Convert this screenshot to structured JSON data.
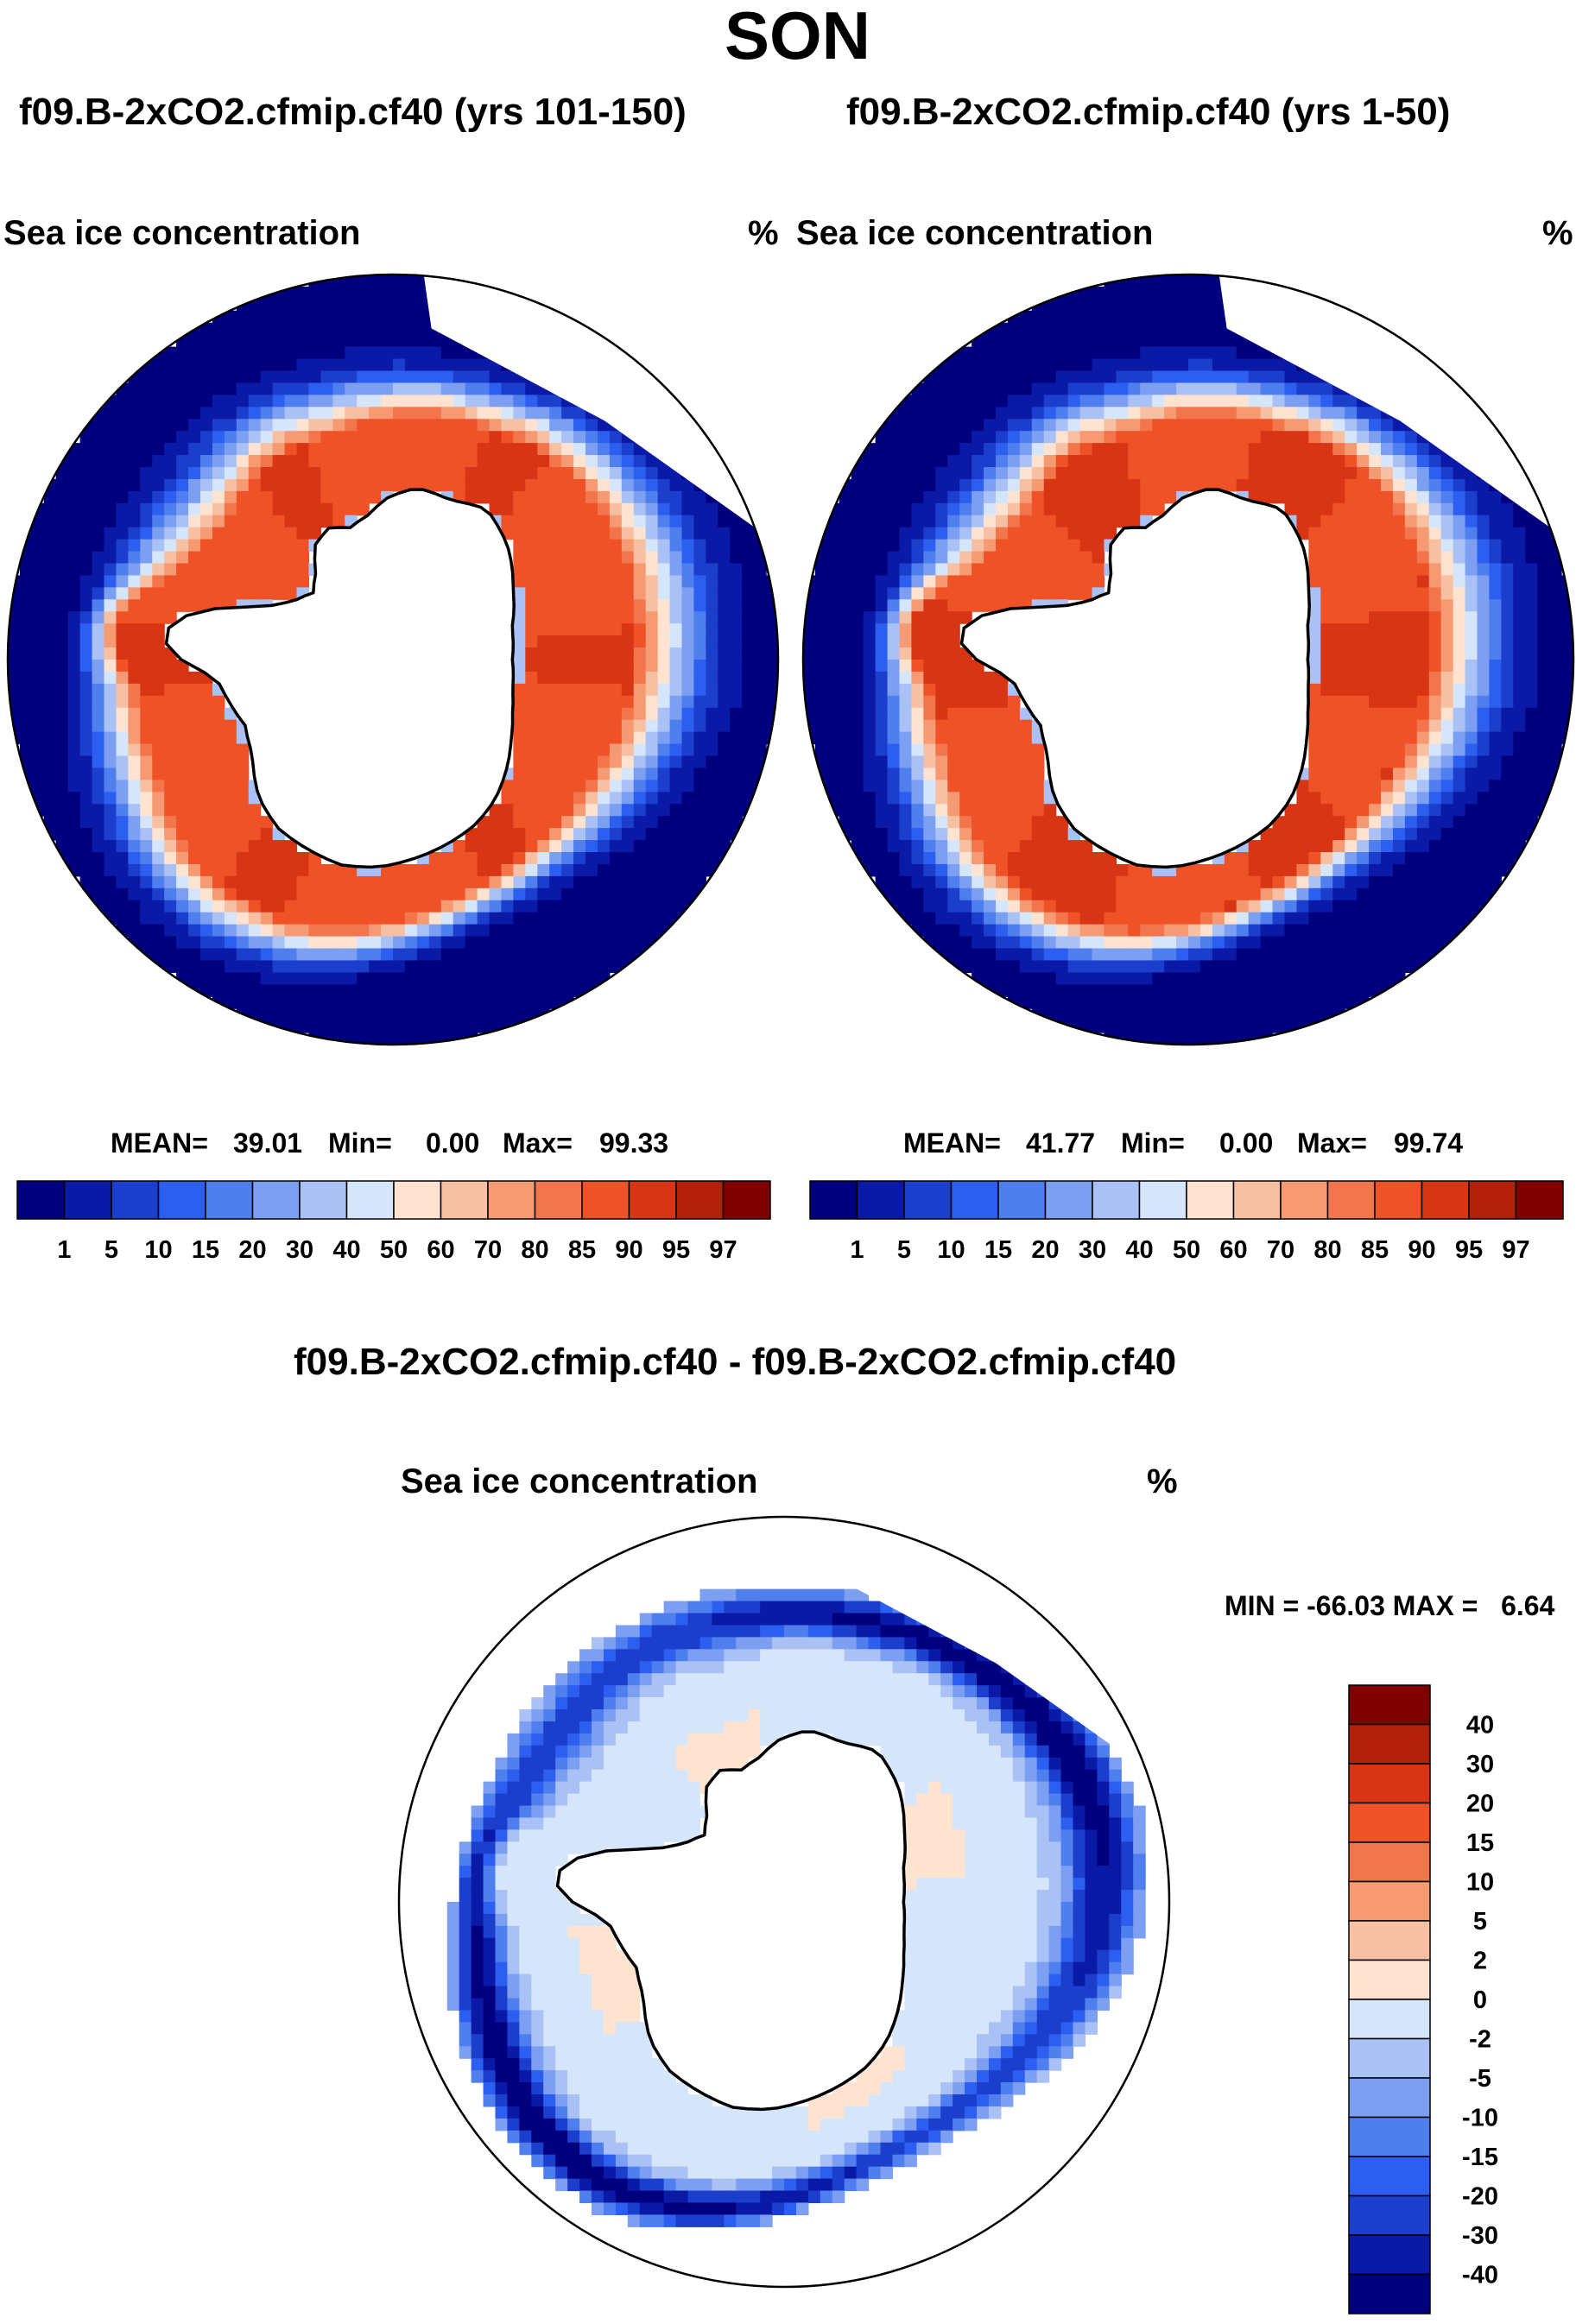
{
  "title": "SON",
  "panels": [
    {
      "name": "left",
      "case_title": "f09.B-2xCO2.cfmip.cf40 (yrs 101-150)",
      "variable": "Sea ice concentration",
      "units": "%",
      "stats": {
        "mean_label": "MEAN=",
        "mean": "39.01",
        "min_label": "Min=",
        "min": "0.00",
        "max_label": "Max=",
        "max": "99.33"
      }
    },
    {
      "name": "right",
      "case_title": "f09.B-2xCO2.cfmip.cf40 (yrs 1-50)",
      "variable": "Sea ice concentration",
      "units": "%",
      "stats": {
        "mean_label": "MEAN=",
        "mean": "41.77",
        "min_label": "Min=",
        "min": "0.00",
        "max_label": "Max=",
        "max": "99.74"
      }
    }
  ],
  "diff_panel": {
    "case_title": "f09.B-2xCO2.cfmip.cf40 - f09.B-2xCO2.cfmip.cf40",
    "variable": "Sea ice concentration",
    "units": "%",
    "minmax_text": "MIN = -66.03 MAX =   6.64"
  },
  "chart_data": [
    {
      "type": "heatmap",
      "title": "f09.B-2xCO2.cfmip.cf40 (yrs 101-150)",
      "variable": "Sea ice concentration",
      "units": "%",
      "projection": "south-polar-stereographic",
      "mean": 39.01,
      "min": 0.0,
      "max": 99.33,
      "levels": [
        1,
        5,
        10,
        15,
        20,
        30,
        40,
        50,
        60,
        70,
        80,
        85,
        90,
        95,
        97
      ],
      "colors": [
        "#00007f",
        "#0a1aa6",
        "#1b3fcc",
        "#2c5ff0",
        "#4f7fee",
        "#7d9ff2",
        "#a9c1f5",
        "#d6e6fa",
        "#fde3d0",
        "#f8c0a2",
        "#f59a73",
        "#f2754c",
        "#ef5227",
        "#d83514",
        "#b3200a",
        "#7f0000"
      ],
      "field": "ring-peaked",
      "field_params": {
        "peak": 93
      }
    },
    {
      "type": "heatmap",
      "title": "f09.B-2xCO2.cfmip.cf40 (yrs 1-50)",
      "variable": "Sea ice concentration",
      "units": "%",
      "projection": "south-polar-stereographic",
      "mean": 41.77,
      "min": 0.0,
      "max": 99.74,
      "levels": [
        1,
        5,
        10,
        15,
        20,
        30,
        40,
        50,
        60,
        70,
        80,
        85,
        90,
        95,
        97
      ],
      "colors": [
        "#00007f",
        "#0a1aa6",
        "#1b3fcc",
        "#2c5ff0",
        "#4f7fee",
        "#7d9ff2",
        "#a9c1f5",
        "#d6e6fa",
        "#fde3d0",
        "#f8c0a2",
        "#f59a73",
        "#f2754c",
        "#ef5227",
        "#d83514",
        "#b3200a",
        "#7f0000"
      ],
      "field": "ring-peaked",
      "field_params": {
        "peak": 95
      }
    },
    {
      "type": "heatmap",
      "title": "f09.B-2xCO2.cfmip.cf40 - f09.B-2xCO2.cfmip.cf40",
      "variable": "Sea ice concentration",
      "units": "%",
      "projection": "south-polar-stereographic",
      "min": -66.03,
      "max": 6.64,
      "levels": [
        40,
        30,
        20,
        15,
        10,
        5,
        2,
        0,
        -2,
        -5,
        -10,
        -15,
        -20,
        -30,
        -40
      ],
      "colors": [
        "#7f0000",
        "#b3200a",
        "#d83514",
        "#ef5227",
        "#f2754c",
        "#f59a73",
        "#f8c0a2",
        "#fde3d0",
        "#d6e6fa",
        "#a9c1f5",
        "#7d9ff2",
        "#4f7fee",
        "#2c5ff0",
        "#1b3fcc",
        "#0a1aa6",
        "#00007f"
      ],
      "field": "difference",
      "field_params": {
        "edge_min": -45
      }
    }
  ]
}
